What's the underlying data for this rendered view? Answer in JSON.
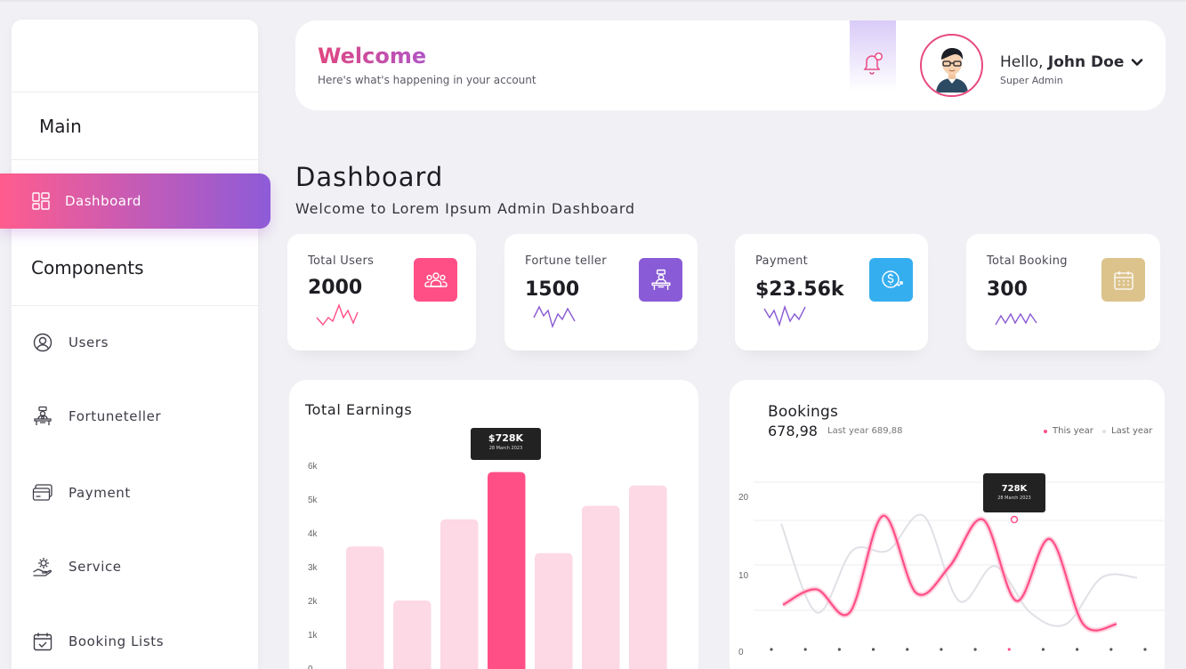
{
  "colors": {
    "accent_pink": "#ff4f86",
    "accent_purple": "#8e5bd8",
    "bar_light": "#fcd9e4",
    "bar_highlight": "#ff4f86",
    "line_this_year": "#ff4f86",
    "line_last_year": "#e0e0e6"
  },
  "sidebar": {
    "section_main": "Main",
    "active_item": {
      "label": "Dashboard",
      "icon": "dashboard-grid-icon"
    },
    "section_components": "Components",
    "items": [
      {
        "label": "Users",
        "icon": "user-circle-icon"
      },
      {
        "label": "Fortuneteller",
        "icon": "fortuneteller-icon"
      },
      {
        "label": "Payment",
        "icon": "card-icon"
      },
      {
        "label": "Service",
        "icon": "service-gear-hand-icon"
      },
      {
        "label": "Booking Lists",
        "icon": "calendar-check-icon"
      }
    ]
  },
  "header": {
    "welcome": "Welcome",
    "subtitle": "Here's what's happening in your account",
    "hello_prefix": "Hello,",
    "user_name": "John Doe",
    "role": "Super Admin"
  },
  "page": {
    "title": "Dashboard",
    "subtitle": "Welcome to Lorem Ipsum Admin Dashboard"
  },
  "stats": [
    {
      "label": "Total Users",
      "value": "2000",
      "icon": "users-group-icon",
      "color": "#ff4f86"
    },
    {
      "label": "Fortune teller",
      "value": "1500",
      "icon": "fortuneteller-icon",
      "color": "#8a5bd6"
    },
    {
      "label": "Payment",
      "value": "$23.56k",
      "icon": "dollar-growth-icon",
      "color": "#35aef0"
    },
    {
      "label": "Total Booking",
      "value": "300",
      "icon": "calendar-icon",
      "color": "#dcc38c"
    }
  ],
  "earnings": {
    "title": "Total Earnings",
    "tooltip_value": "$728K",
    "tooltip_date": "28 March 2023",
    "chart_data": {
      "type": "bar",
      "values": [
        3.6,
        2.0,
        4.4,
        5.8,
        3.4,
        4.8,
        5.4
      ],
      "highlight_index": 3,
      "ylim": [
        0,
        6
      ],
      "y_ticks": [
        "0",
        "1k",
        "2k",
        "3k",
        "4k",
        "5k",
        "6k"
      ]
    }
  },
  "bookings": {
    "title": "Bookings",
    "total": "678,98",
    "last_year_text": "Last year 689,88",
    "legend_this_year": "This year",
    "legend_last_year": "Last year",
    "tooltip_value": "728K",
    "tooltip_date": "28 March 2023",
    "chart_data": {
      "type": "line",
      "ylim": [
        0,
        23
      ],
      "y_ticks": [
        "0",
        "10",
        "20"
      ],
      "x_count": 12,
      "highlight_index": 7,
      "series": [
        {
          "name": "This year",
          "values": [
            6.0,
            8.0,
            5.0,
            17.5,
            7.5,
            11.0,
            17.0,
            6.5,
            14.5,
            3.5,
            3.5,
            3.5
          ]
        },
        {
          "name": "Last year",
          "values": [
            16.5,
            5.0,
            13.0,
            13.0,
            17.5,
            6.5,
            11.0,
            5.0,
            3.5,
            9.5,
            9.5,
            9.5
          ]
        }
      ]
    }
  }
}
